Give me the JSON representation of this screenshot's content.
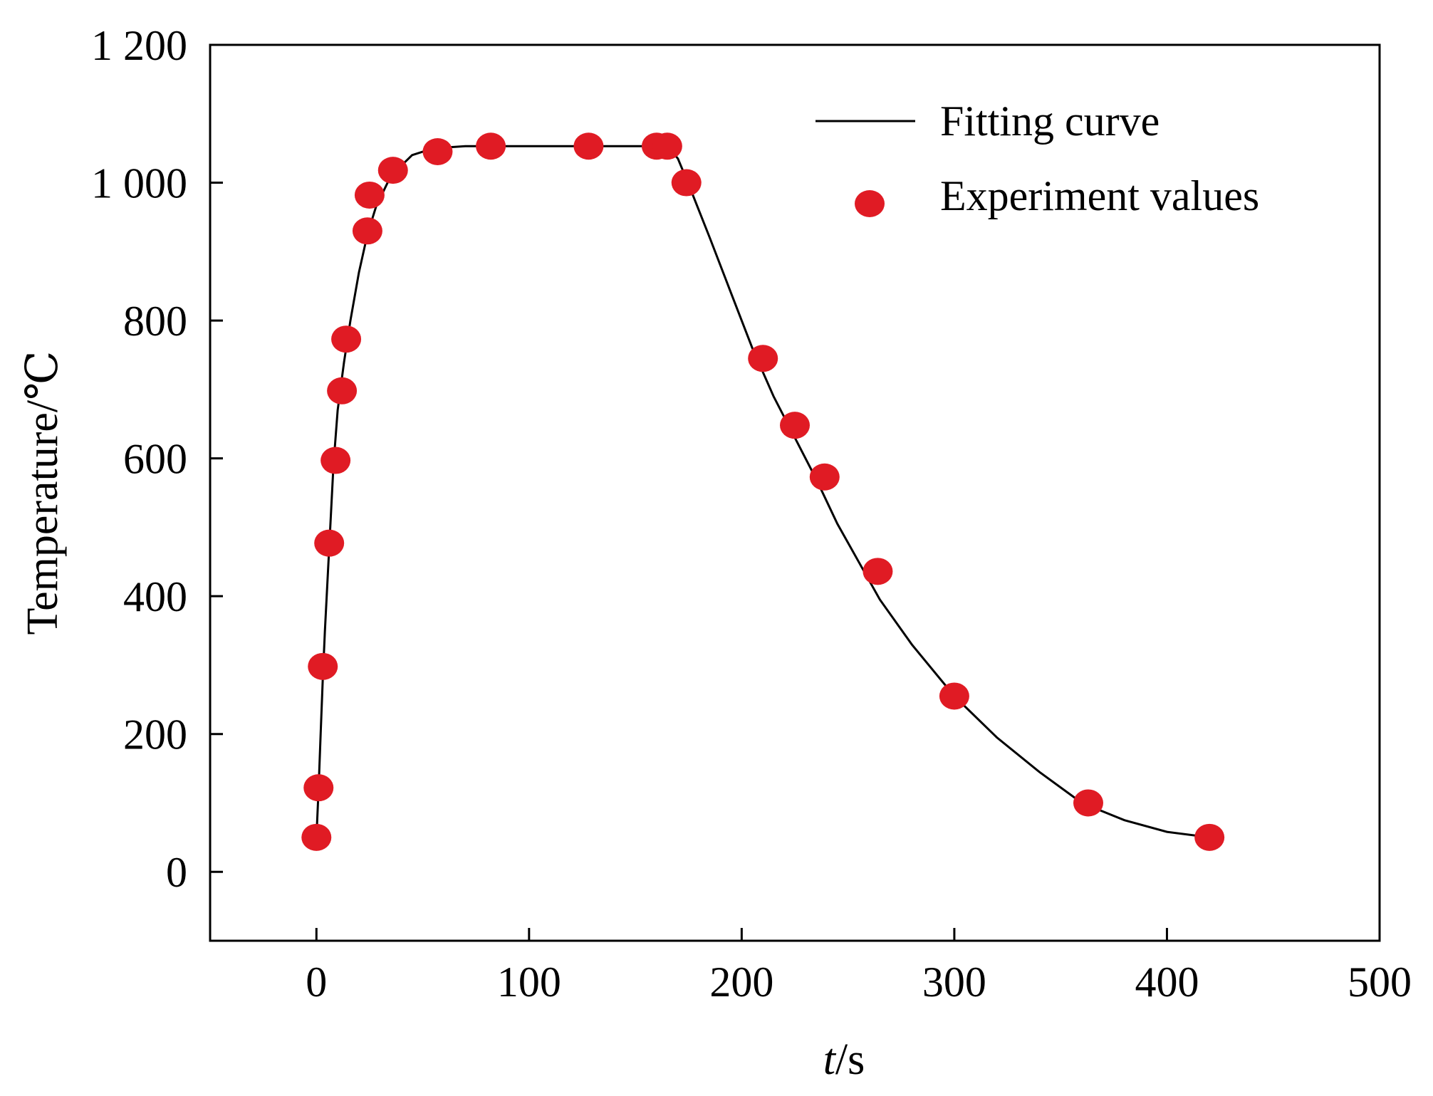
{
  "chart_data": {
    "type": "scatter",
    "title": "",
    "xlabel": "s",
    "xlabel_var": "t",
    "xlabel_sep": "/",
    "ylabel": "Temperature/℃",
    "xlim": [
      -50,
      500
    ],
    "ylim": [
      -100,
      1200
    ],
    "xticks": [
      0,
      100,
      200,
      300,
      400,
      500
    ],
    "yticks": [
      0,
      200,
      400,
      600,
      800,
      1000,
      1200
    ],
    "xtick_labels": [
      "0",
      "100",
      "200",
      "300",
      "400",
      "500"
    ],
    "ytick_labels": [
      "0",
      "200",
      "400",
      "600",
      "800",
      "1 000",
      "1 200"
    ],
    "grid": false,
    "legend_position": "top-right",
    "colors": {
      "points": "#e01b24",
      "curve": "#000000",
      "axes": "#000000"
    },
    "series": [
      {
        "name": "Fitting curve",
        "kind": "line",
        "x": [
          0,
          1,
          2,
          3,
          4,
          6,
          8,
          10,
          13,
          16,
          20,
          24,
          28,
          35,
          45,
          55,
          70,
          90,
          110,
          130,
          150,
          165,
          170,
          175,
          185,
          195,
          205,
          215,
          225,
          235,
          245,
          255,
          265,
          280,
          300,
          320,
          340,
          360,
          380,
          400,
          420
        ],
        "y": [
          50,
          120,
          200,
          280,
          350,
          470,
          590,
          670,
          740,
          800,
          870,
          925,
          965,
          1010,
          1040,
          1050,
          1053,
          1053,
          1053,
          1053,
          1053,
          1053,
          1035,
          998,
          920,
          840,
          760,
          690,
          630,
          570,
          505,
          450,
          395,
          330,
          255,
          195,
          145,
          100,
          75,
          58,
          50
        ]
      },
      {
        "name": "Experiment values",
        "kind": "scatter",
        "x": [
          0,
          1,
          3,
          6,
          9,
          12,
          14,
          24,
          25,
          36,
          57,
          82,
          128,
          160,
          165,
          174,
          210,
          225,
          239,
          264,
          300,
          363,
          420
        ],
        "y": [
          50,
          122,
          298,
          477,
          597,
          698,
          773,
          930,
          982,
          1018,
          1045,
          1053,
          1053,
          1053,
          1053,
          1000,
          745,
          648,
          573,
          436,
          255,
          100,
          50
        ]
      }
    ]
  }
}
